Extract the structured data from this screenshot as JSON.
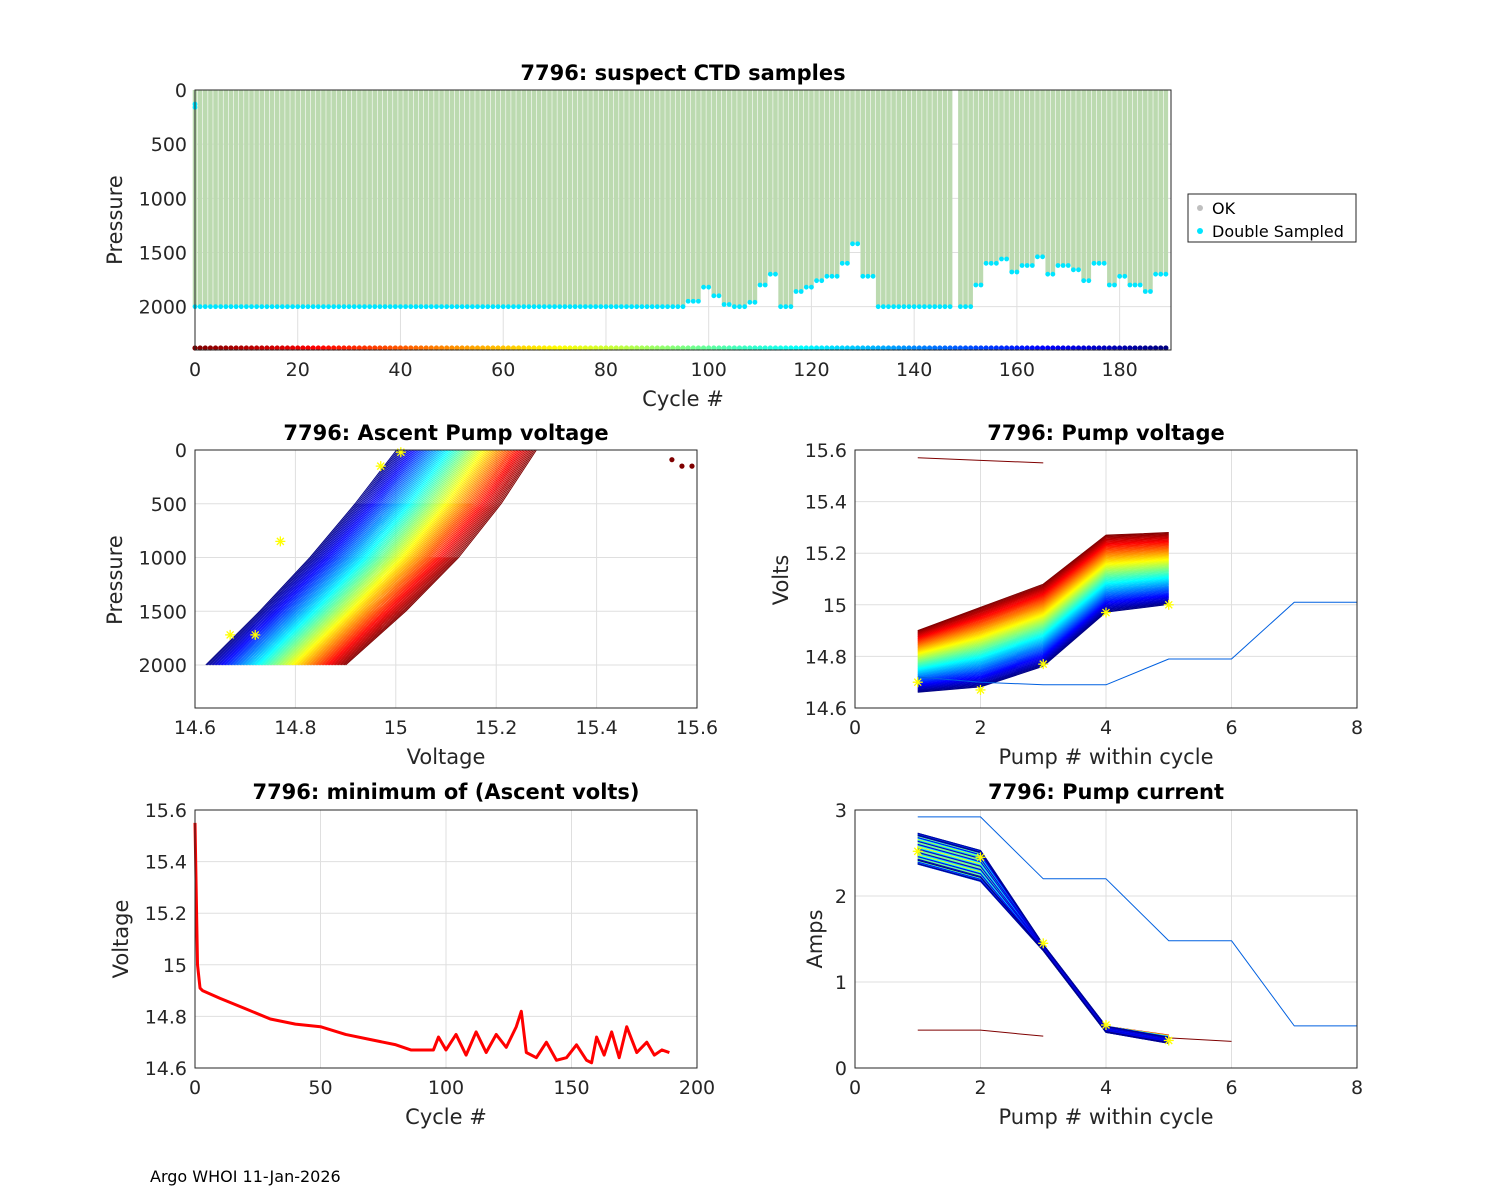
{
  "footer": "Argo WHOI 11-Jan-2026",
  "chart_data": [
    {
      "id": "ctd",
      "type": "scatter",
      "title": "7796: suspect CTD samples",
      "xlabel": "Cycle #",
      "ylabel": "Pressure",
      "xlim": [
        0,
        190
      ],
      "ylim": [
        2400,
        0
      ],
      "y_reversed": true,
      "xticks": [
        0,
        20,
        40,
        60,
        80,
        100,
        120,
        140,
        160,
        180
      ],
      "yticks": [
        0,
        500,
        1000,
        1500,
        2000
      ],
      "legend": {
        "position": "outside-right",
        "entries": [
          "OK",
          "Double Sampled"
        ]
      },
      "ok_color": "#bcdab0",
      "double_sampled_color": "#00e5ff",
      "bottom_pressure_by_cycle_segments": [
        {
          "cycles": [
            0,
            95
          ],
          "pressure": 2000
        },
        {
          "cycles": [
            96,
            132
          ],
          "pressure": [
            1950,
            1820,
            1900,
            1980,
            2000,
            1960,
            1800,
            1700,
            2000,
            1860,
            1820,
            1760,
            1720,
            1600,
            1420,
            1720
          ]
        },
        {
          "cycles": [
            133,
            147
          ],
          "pressure": 2000
        },
        {
          "cycles": [
            148,
            148
          ],
          "pressure": 0
        },
        {
          "cycles": [
            149,
            189
          ],
          "pressure": [
            2000,
            1800,
            1600,
            1560,
            1680,
            1620,
            1540,
            1700,
            1620,
            1660,
            1760,
            1600,
            1800,
            1720,
            1800,
            1860,
            1700
          ]
        }
      ],
      "cycle_color_bar": "jet reversed (cycle 0 = dark red, cycle 189 = dark blue)"
    },
    {
      "id": "ascent",
      "type": "line",
      "title": "7796: Ascent Pump voltage",
      "xlabel": "Voltage",
      "ylabel": "Pressure",
      "xlim": [
        14.6,
        15.6
      ],
      "ylim": [
        2400,
        0
      ],
      "y_reversed": true,
      "xticks": [
        14.6,
        14.8,
        15,
        15.2,
        15.4,
        15.6
      ],
      "xticklabels": [
        "14.6",
        "14.8",
        "15",
        "15.2",
        "15.4",
        "15.6"
      ],
      "yticks": [
        0,
        500,
        1000,
        1500,
        2000
      ],
      "series_description": "one line per cycle, colored by cycle (jet reversed)",
      "profile_envelope": {
        "early_cycles_red": {
          "v_at_2000": 14.9,
          "v_at_0": 15.28
        },
        "late_cycles_blue": {
          "v_at_2000": 14.62,
          "v_at_0": 15.0
        }
      },
      "outlier_points": [
        {
          "v": 15.55,
          "p": 90
        },
        {
          "v": 15.57,
          "p": 150
        },
        {
          "v": 15.59,
          "p": 150
        }
      ]
    },
    {
      "id": "pumpv",
      "type": "line",
      "title": "7796: Pump voltage",
      "xlabel": "Pump # within cycle",
      "ylabel": "Volts",
      "xlim": [
        0,
        8
      ],
      "ylim": [
        14.6,
        15.6
      ],
      "xticks": [
        0,
        2,
        4,
        6,
        8
      ],
      "yticks": [
        14.6,
        14.8,
        15,
        15.2,
        15.4,
        15.6
      ],
      "yticklabels": [
        "14.6",
        "14.8",
        "15",
        "15.2",
        "15.4",
        "15.6"
      ],
      "series_description": "one line per cycle across pump numbers 1-5, colored by cycle",
      "envelope": {
        "early_red": [
          14.9,
          14.99,
          15.08,
          15.27,
          15.28
        ],
        "late_blue": [
          14.66,
          14.68,
          14.76,
          14.97,
          15.0
        ]
      },
      "outlier_series": [
        {
          "x": [
            1,
            2,
            3
          ],
          "y": [
            15.57,
            15.56,
            15.55
          ]
        },
        {
          "x": [
            1,
            2,
            3,
            4,
            5,
            6,
            7,
            8
          ],
          "y": [
            14.72,
            14.7,
            14.69,
            14.69,
            14.79,
            14.79,
            15.01,
            15.01
          ]
        }
      ]
    },
    {
      "id": "minv",
      "type": "line",
      "title": "7796: minimum of (Ascent volts)",
      "xlabel": "Cycle #",
      "ylabel": "Voltage",
      "xlim": [
        0,
        200
      ],
      "ylim": [
        14.6,
        15.6
      ],
      "xticks": [
        0,
        50,
        100,
        150,
        200
      ],
      "yticks": [
        14.6,
        14.8,
        15,
        15.2,
        15.4,
        15.6
      ],
      "yticklabels": [
        "14.6",
        "14.8",
        "15",
        "15.2",
        "15.4",
        "15.6"
      ],
      "color": "#ff0000",
      "x": [
        0,
        1,
        2,
        3,
        10,
        20,
        30,
        40,
        50,
        60,
        70,
        80,
        86,
        95,
        97,
        100,
        104,
        108,
        112,
        116,
        120,
        124,
        128,
        130,
        132,
        136,
        140,
        144,
        148,
        152,
        156,
        158,
        160,
        163,
        166,
        169,
        172,
        176,
        180,
        183,
        186,
        189
      ],
      "y": [
        15.55,
        15.0,
        14.91,
        14.9,
        14.87,
        14.83,
        14.79,
        14.77,
        14.76,
        14.73,
        14.71,
        14.69,
        14.67,
        14.67,
        14.72,
        14.67,
        14.73,
        14.65,
        14.74,
        14.66,
        14.73,
        14.68,
        14.76,
        14.82,
        14.66,
        14.64,
        14.7,
        14.63,
        14.64,
        14.69,
        14.63,
        14.62,
        14.72,
        14.65,
        14.74,
        14.64,
        14.76,
        14.66,
        14.7,
        14.65,
        14.67,
        14.66
      ]
    },
    {
      "id": "pumpc",
      "type": "line",
      "title": "7796: Pump current",
      "xlabel": "Pump # within cycle",
      "ylabel": "Amps",
      "xlim": [
        0,
        8
      ],
      "ylim": [
        0,
        3
      ],
      "xticks": [
        0,
        2,
        4,
        6,
        8
      ],
      "yticks": [
        0,
        1,
        2,
        3
      ],
      "series_description": "one line per cycle across pump numbers 1-5, colored by cycle",
      "envelope": {
        "typical": [
          2.55,
          2.35,
          1.4,
          0.45,
          0.35
        ]
      },
      "outlier_series": [
        {
          "x": [
            1,
            2,
            3
          ],
          "y": [
            0.44,
            0.44,
            0.37
          ]
        },
        {
          "x": [
            1,
            2,
            3,
            4,
            5,
            6,
            7,
            8
          ],
          "y": [
            2.92,
            2.92,
            2.2,
            2.2,
            1.48,
            1.48,
            0.49,
            0.49
          ]
        },
        {
          "x": [
            5,
            6
          ],
          "y": [
            0.35,
            0.31
          ]
        }
      ]
    }
  ]
}
